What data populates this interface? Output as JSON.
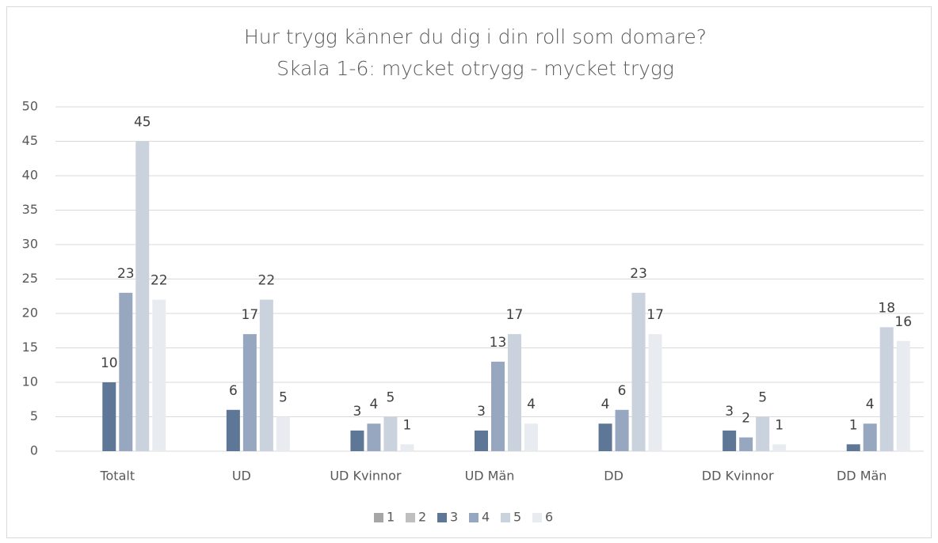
{
  "chart_data": {
    "type": "bar",
    "title": "Hur trygg känner du dig i din roll som domare?",
    "subtitle": "Skala 1-6: mycket otrygg - mycket trygg",
    "categories": [
      "Totalt",
      "UD",
      "UD Kvinnor",
      "UD Män",
      "DD",
      "DD Kvinnor",
      "DD Män"
    ],
    "series": [
      {
        "name": "1",
        "color": "#a6a6a6",
        "values": [
          null,
          null,
          null,
          null,
          null,
          null,
          null
        ]
      },
      {
        "name": "2",
        "color": "#bfbfbf",
        "values": [
          null,
          null,
          null,
          null,
          null,
          null,
          null
        ]
      },
      {
        "name": "3",
        "color": "#5f7797",
        "values": [
          10,
          6,
          3,
          3,
          4,
          3,
          1
        ]
      },
      {
        "name": "4",
        "color": "#97a7bf",
        "values": [
          23,
          17,
          4,
          13,
          6,
          2,
          4
        ]
      },
      {
        "name": "5",
        "color": "#c9d2dd",
        "values": [
          45,
          22,
          5,
          17,
          23,
          5,
          18
        ]
      },
      {
        "name": "6",
        "color": "#e8ecf1",
        "values": [
          22,
          5,
          1,
          4,
          17,
          1,
          16
        ]
      }
    ],
    "ylim": [
      0,
      50
    ],
    "yticks": [
      0,
      5,
      10,
      15,
      20,
      25,
      30,
      35,
      40,
      45,
      50
    ],
    "grid": true,
    "legend": "bottom"
  }
}
